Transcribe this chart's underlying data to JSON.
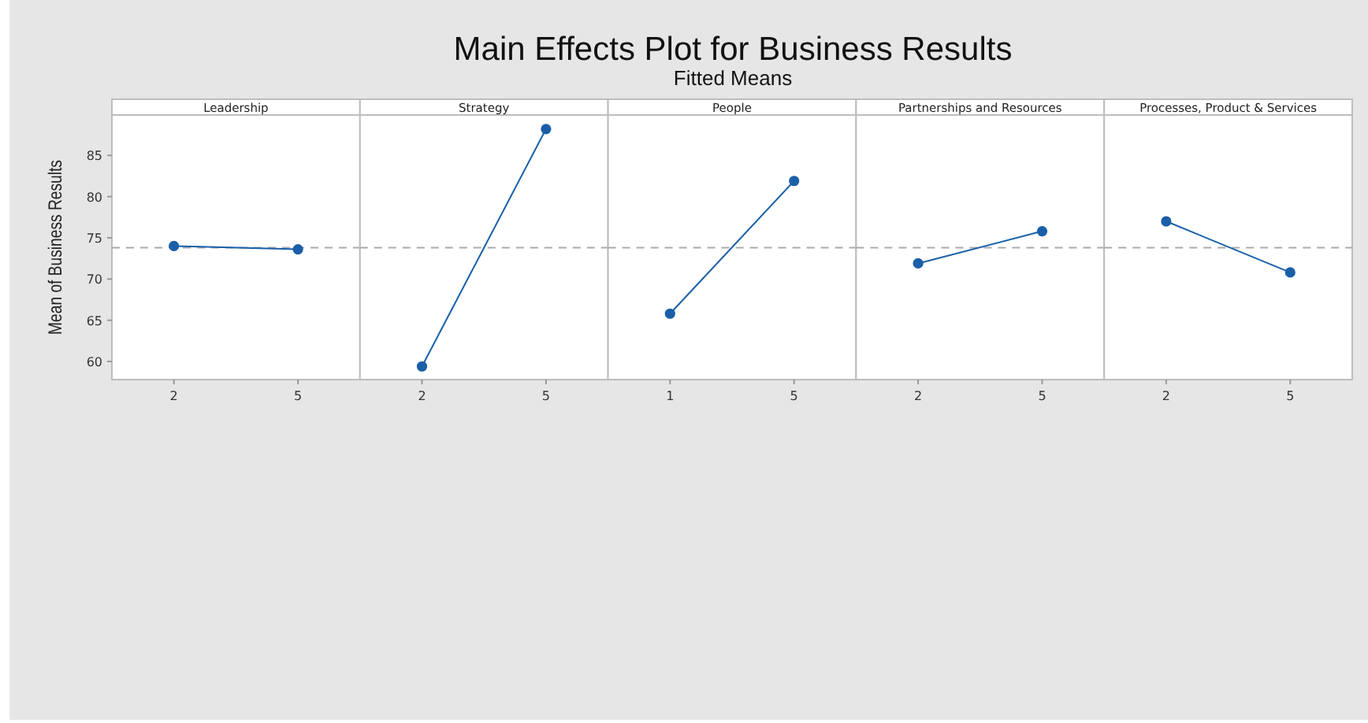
{
  "chart_data": [
    {
      "type": "other",
      "title": "Main Effects Plot for Business Results",
      "subtitle": "Fitted Means"
    },
    {
      "type": "line",
      "title": "Leadership",
      "ylabel": "Mean of Business Results",
      "categories": [
        "2",
        "5"
      ],
      "series": [
        {
          "color": "#1a5fa8",
          "values": [
            74.0,
            73.6
          ]
        }
      ],
      "ylim": [
        57.8,
        89.9
      ],
      "yticks": [
        60,
        65,
        70,
        75,
        80,
        85
      ],
      "ref_lines": [
        {
          "axis": "y",
          "value": 73.8,
          "color": "#aaaaaa",
          "line_style": "dashed"
        }
      ],
      "marker": "circle",
      "grid": false
    },
    {
      "type": "line",
      "title": "Strategy",
      "categories": [
        "2",
        "5"
      ],
      "series": [
        {
          "color": "#1a5fa8",
          "values": [
            59.4,
            88.2
          ]
        }
      ],
      "ylim": [
        57.8,
        89.9
      ],
      "tick_labels": "x",
      "ref_lines": [
        {
          "axis": "y",
          "value": 73.8,
          "color": "#aaaaaa",
          "line_style": "dashed"
        }
      ],
      "marker": "circle",
      "grid": false
    },
    {
      "type": "line",
      "title": "People",
      "categories": [
        "1",
        "5"
      ],
      "series": [
        {
          "color": "#1a5fa8",
          "values": [
            65.8,
            81.9
          ]
        }
      ],
      "ylim": [
        57.8,
        89.9
      ],
      "tick_labels": "x",
      "ref_lines": [
        {
          "axis": "y",
          "value": 73.8,
          "color": "#aaaaaa",
          "line_style": "dashed"
        }
      ],
      "marker": "circle",
      "grid": false
    },
    {
      "type": "line",
      "title": "Partnerships and Resources",
      "categories": [
        "2",
        "5"
      ],
      "series": [
        {
          "color": "#1a5fa8",
          "values": [
            71.9,
            75.8
          ]
        }
      ],
      "ylim": [
        57.8,
        89.9
      ],
      "tick_labels": "x",
      "ref_lines": [
        {
          "axis": "y",
          "value": 73.8,
          "color": "#aaaaaa",
          "line_style": "dashed"
        }
      ],
      "marker": "circle",
      "grid": false
    },
    {
      "type": "line",
      "title": "Processes, Product & Services",
      "categories": [
        "2",
        "5"
      ],
      "series": [
        {
          "color": "#1a5fa8",
          "values": [
            77.0,
            70.8
          ]
        }
      ],
      "ylim": [
        57.8,
        89.9
      ],
      "tick_labels": "x",
      "ref_lines": [
        {
          "axis": "y",
          "value": 73.8,
          "color": "#aaaaaa",
          "line_style": "dashed"
        }
      ],
      "marker": "circle",
      "grid": false
    }
  ]
}
